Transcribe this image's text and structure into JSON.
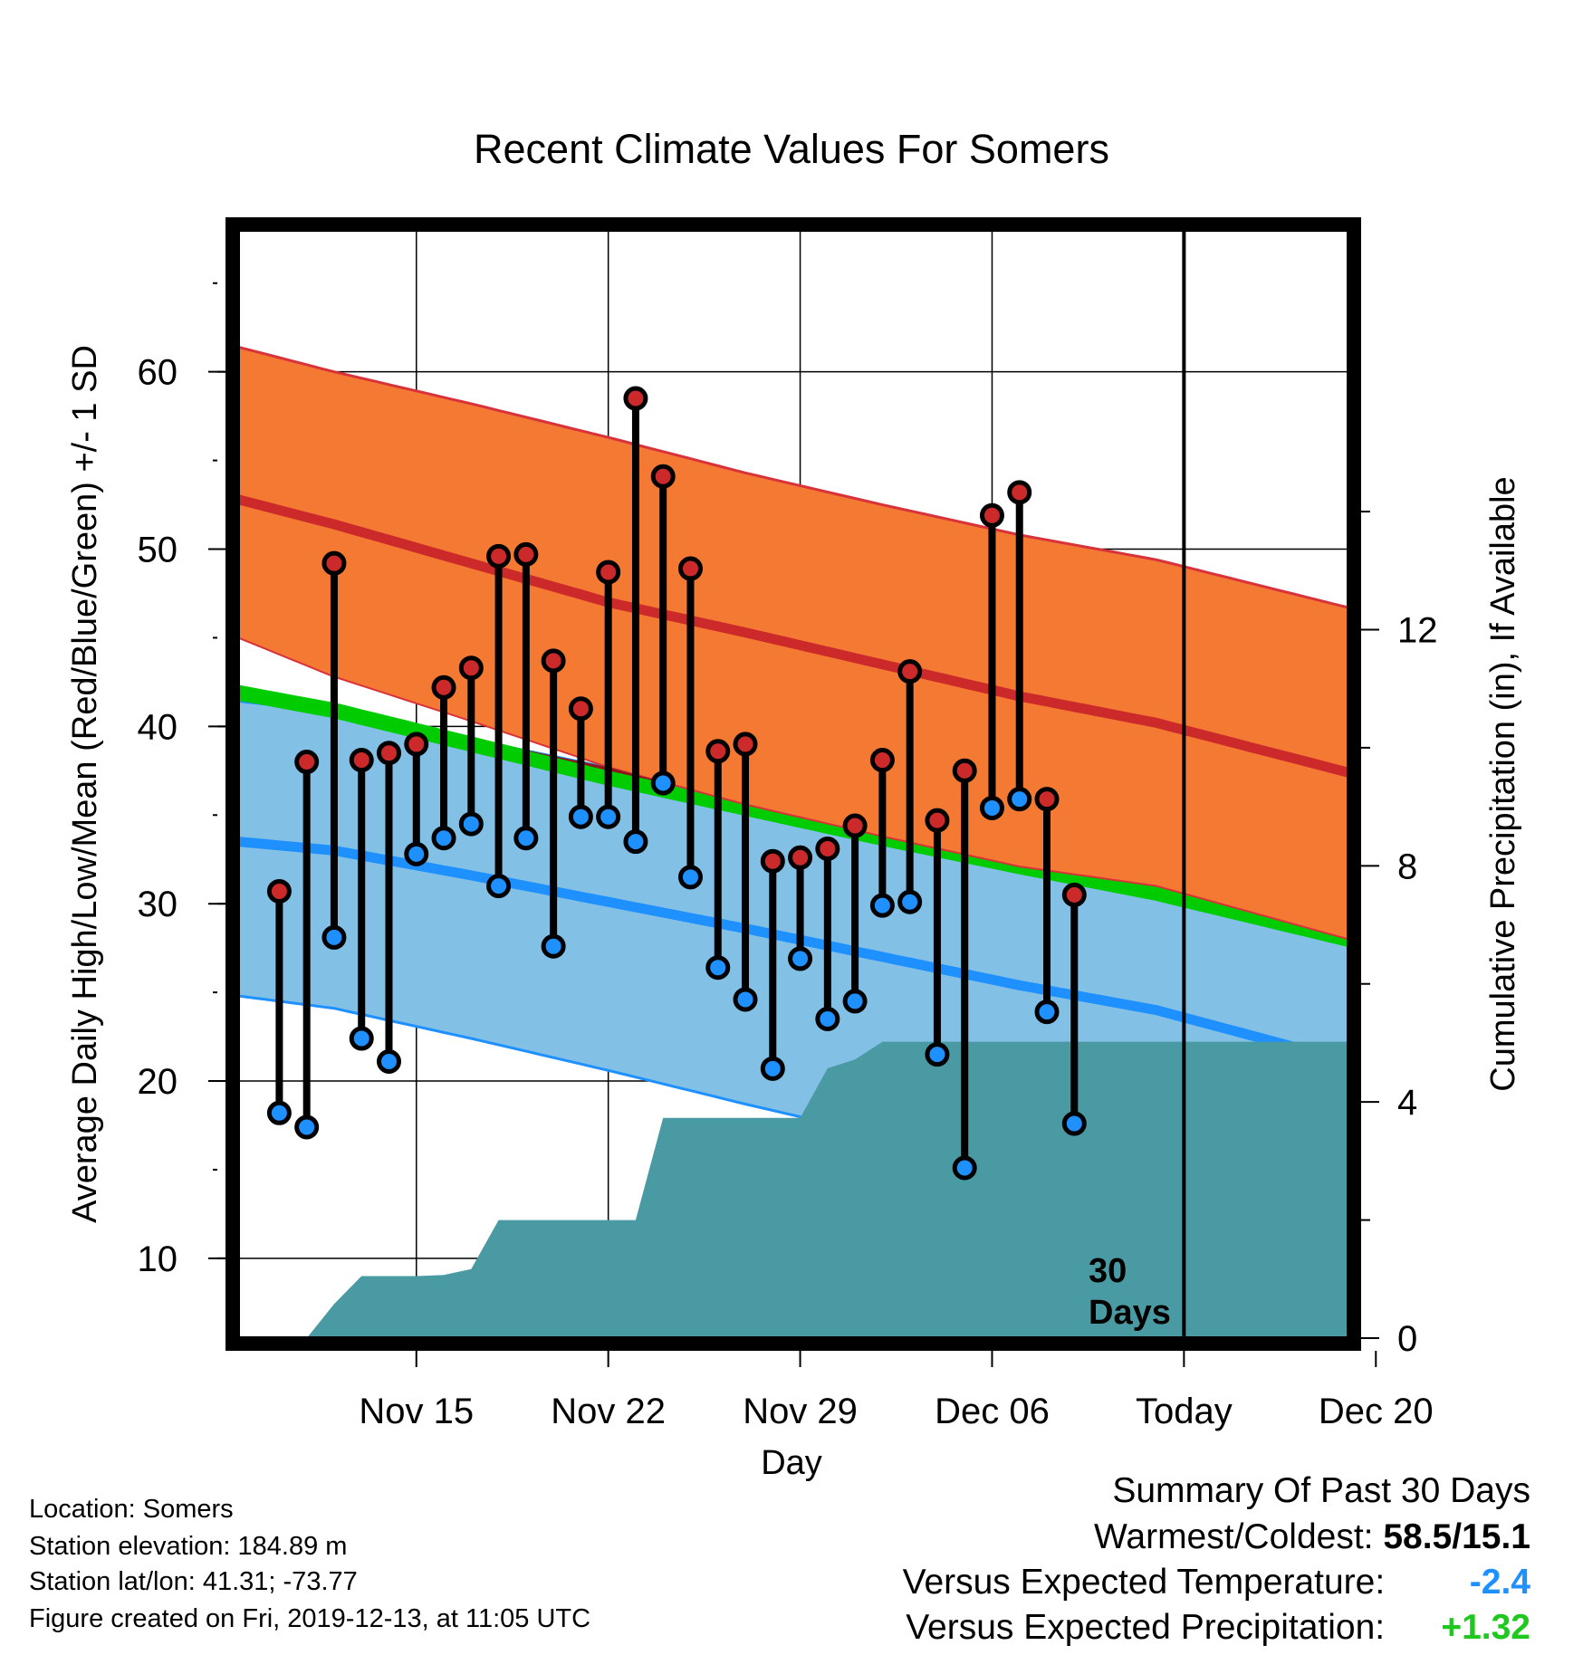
{
  "chart_data": {
    "type": "line",
    "title": "Recent Climate Values For Somers",
    "xlabel": "Day",
    "ylabel_left": "Average Daily High/Low/Mean (Red/Blue/Green) +/- 1 SD",
    "ylabel_right": "Cumulative Precipitation (in), If Available",
    "ylim_left": [
      5.5,
      68
    ],
    "ylim_right": [
      0,
      18.77
    ],
    "xlim_days": [
      -3.5,
      37
    ],
    "x_axis_origin": "Nov 12 = day 0",
    "left_ticks": [
      10,
      20,
      30,
      40,
      50,
      60
    ],
    "right_ticks": [
      0,
      4,
      8,
      12
    ],
    "x_ticks": [
      {
        "day": 3,
        "label": "Nov 15"
      },
      {
        "day": 10,
        "label": "Nov 22"
      },
      {
        "day": 17,
        "label": "Nov 29"
      },
      {
        "day": 24,
        "label": "Dec 06"
      },
      {
        "day": 31,
        "label": "Today"
      },
      {
        "day": 38,
        "label": "Dec 20"
      }
    ],
    "today_day": 31,
    "window_label_line1": "30",
    "window_label_line2": "Days",
    "normals": {
      "days": [
        -3.5,
        0,
        5,
        10,
        15,
        20,
        25,
        30,
        37
      ],
      "high_mean": [
        52.8,
        51.4,
        49.2,
        47.0,
        45.3,
        43.5,
        41.7,
        40.2,
        37.4
      ],
      "high_upper": [
        61.4,
        60.0,
        58.2,
        56.3,
        54.3,
        52.5,
        50.8,
        49.4,
        46.7
      ],
      "high_lower": [
        45.0,
        42.8,
        40.3,
        37.7,
        35.6,
        33.8,
        32.1,
        31.0,
        28.0
      ],
      "low_mean": [
        33.5,
        33.0,
        31.6,
        30.1,
        28.6,
        27.0,
        25.4,
        24.0,
        21.1
      ],
      "low_upper": [
        41.4,
        40.8,
        39.3,
        37.7,
        36.0,
        34.4,
        32.9,
        31.6,
        30.6
      ],
      "low_lower": [
        24.8,
        24.1,
        22.4,
        20.6,
        18.7,
        16.9,
        15.2,
        13.5,
        11.3
      ],
      "mean": [
        42.5,
        41.5,
        39.6,
        37.7,
        36.0,
        34.3,
        32.7,
        31.2,
        28.6
      ]
    },
    "series": [
      {
        "name": "High",
        "color": "#cc2a2a",
        "values": [
          30.7,
          38.0,
          49.2,
          38.1,
          38.5,
          39.0,
          42.2,
          43.3,
          49.6,
          49.7,
          43.7,
          41.0,
          48.7,
          58.5,
          54.1,
          48.9,
          38.6,
          39.0,
          32.4,
          32.6,
          33.1,
          34.4,
          38.1,
          43.1,
          34.7,
          37.5,
          51.9,
          53.2,
          35.9,
          30.5
        ]
      },
      {
        "name": "Low",
        "color": "#1e90ff",
        "values": [
          18.2,
          17.4,
          28.1,
          22.4,
          21.1,
          32.8,
          33.7,
          34.5,
          31.0,
          33.7,
          27.6,
          34.9,
          34.9,
          33.5,
          36.8,
          31.5,
          26.4,
          24.6,
          20.7,
          26.9,
          23.5,
          24.5,
          29.9,
          30.1,
          21.5,
          15.1,
          35.4,
          35.9,
          23.9,
          17.6
        ]
      }
    ],
    "obs_days": [
      -2,
      -1,
      0,
      1,
      2,
      3,
      4,
      5,
      6,
      7,
      8,
      9,
      10,
      11,
      12,
      13,
      14,
      15,
      16,
      17,
      18,
      19,
      20,
      21,
      22,
      23,
      24,
      25,
      26,
      27
    ],
    "precip": {
      "days": [
        -1,
        0,
        1,
        2,
        3,
        4,
        5,
        6,
        7,
        8,
        9,
        10,
        11,
        12,
        13,
        14,
        15,
        16,
        17,
        18,
        19,
        20,
        21,
        22,
        23,
        24,
        25,
        26,
        27,
        37
      ],
      "cumulative": [
        0,
        0.58,
        1.05,
        1.05,
        1.05,
        1.07,
        1.17,
        2.0,
        2.0,
        2.0,
        2.0,
        2.0,
        2.0,
        3.73,
        3.73,
        3.73,
        3.73,
        3.73,
        3.73,
        4.57,
        4.72,
        5.02,
        5.02,
        5.02,
        5.02,
        5.02,
        5.02,
        5.02,
        5.02,
        5.02
      ]
    },
    "colors": {
      "high_band": "#f47a33",
      "high_mean": "#cc2a2a",
      "low_band": "#82c0e6",
      "low_mean": "#1e90ff",
      "mean_band": "#00cc00",
      "overlap": "#8b1818",
      "precip": "#4a9aa3"
    },
    "grid": true
  },
  "info": {
    "location": "Location: Somers",
    "elevation": "Station elevation: 184.89 m",
    "latlon": "Station lat/lon: 41.31; -73.77",
    "created": "Figure created on Fri, 2019-12-13, at 11:05 UTC"
  },
  "summary": {
    "heading": "Summary Of Past 30 Days",
    "warm_cold_label": "Warmest/Coldest:",
    "warm_cold_value": "58.5/15.1",
    "temp_label": "Versus Expected Temperature:",
    "temp_value": "-2.4",
    "temp_color": "#1e90ff",
    "precip_label": "Versus Expected Precipitation:",
    "precip_value": "+1.32",
    "precip_color": "#1ec81e"
  }
}
